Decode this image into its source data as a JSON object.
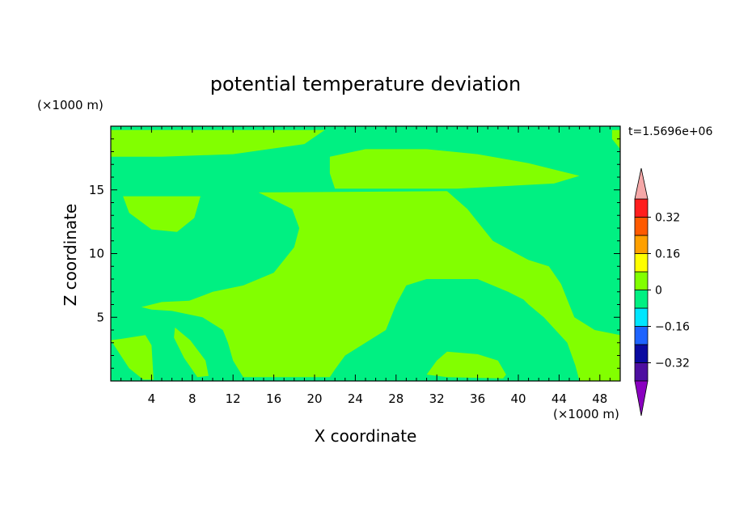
{
  "chart_data": {
    "type": "heatmap",
    "title": "potential temperature deviation",
    "xlabel": "X coordinate",
    "ylabel": "Z coordinate",
    "x_unit": "(×1000 m)",
    "y_unit": "(×1000 m)",
    "time_label": "t=1.5696e+06",
    "xlim": [
      0,
      50
    ],
    "ylim": [
      0,
      20
    ],
    "x_ticks": [
      4,
      8,
      12,
      16,
      20,
      24,
      28,
      32,
      36,
      40,
      44,
      48
    ],
    "y_ticks": [
      5,
      10,
      15
    ],
    "colorbar": {
      "levels": [
        -0.4,
        -0.32,
        -0.24,
        -0.16,
        -0.08,
        0,
        0.08,
        0.16,
        0.24,
        0.32,
        0.4
      ],
      "tick_labels": [
        "0.32",
        "0.16",
        "0",
        "−0.16",
        "−0.32"
      ],
      "tick_values": [
        0.32,
        0.16,
        0,
        -0.16,
        -0.32
      ],
      "colors": [
        "#4d0fa0",
        "#0a0aa0",
        "#1e64ff",
        "#00e6ff",
        "#00f082",
        "#82ff00",
        "#ffff00",
        "#ffa000",
        "#ff5a00",
        "#ff1e1e"
      ],
      "below_color": "#8a00c0",
      "above_color": "#f5a8a8"
    },
    "field": {
      "background_color": "#00f082",
      "positive_color": "#82ff00",
      "regions": [
        {
          "name": "top-band",
          "points": [
            [
              0,
              19.7
            ],
            [
              21,
              19.7
            ],
            [
              19,
              18.6
            ],
            [
              12,
              17.8
            ],
            [
              5,
              17.6
            ],
            [
              0,
              17.6
            ]
          ]
        },
        {
          "name": "upper-right-band",
          "points": [
            [
              21.5,
              17.6
            ],
            [
              25,
              18.2
            ],
            [
              31,
              18.2
            ],
            [
              36,
              17.8
            ],
            [
              41,
              17.1
            ],
            [
              46,
              16.1
            ],
            [
              43.5,
              15.5
            ],
            [
              34,
              15.1
            ],
            [
              22,
              15.1
            ],
            [
              21.5,
              16.3
            ]
          ]
        },
        {
          "name": "left-blob",
          "points": [
            [
              1.2,
              14.5
            ],
            [
              8.8,
              14.5
            ],
            [
              8.2,
              12.8
            ],
            [
              6.5,
              11.7
            ],
            [
              4,
              11.9
            ],
            [
              1.8,
              13.2
            ]
          ]
        },
        {
          "name": "central-region",
          "points": [
            [
              14.5,
              14.8
            ],
            [
              33,
              14.9
            ],
            [
              35,
              13.5
            ],
            [
              37.5,
              11
            ],
            [
              41,
              9.5
            ],
            [
              43,
              9
            ],
            [
              44.2,
              7.6
            ],
            [
              45.5,
              5
            ],
            [
              47.5,
              4
            ],
            [
              50,
              3.6
            ],
            [
              50,
              0
            ],
            [
              46,
              0
            ],
            [
              45.6,
              1.2
            ],
            [
              44.8,
              3
            ],
            [
              42.5,
              5
            ],
            [
              41,
              6
            ],
            [
              40.5,
              6.4
            ],
            [
              39,
              7
            ],
            [
              36,
              8
            ],
            [
              31,
              8
            ],
            [
              29,
              7.5
            ],
            [
              28,
              6
            ],
            [
              27,
              4
            ],
            [
              25,
              3
            ],
            [
              23,
              2
            ],
            [
              22,
              0.9
            ],
            [
              21.5,
              0.3
            ],
            [
              13,
              0.3
            ],
            [
              12,
              1.6
            ],
            [
              11.5,
              3
            ],
            [
              11,
              4
            ],
            [
              9,
              5
            ],
            [
              6,
              5.5
            ],
            [
              4,
              5.6
            ],
            [
              3,
              5.8
            ],
            [
              5,
              6.2
            ],
            [
              7.7,
              6.3
            ],
            [
              10,
              7
            ],
            [
              13,
              7.5
            ],
            [
              16,
              8.5
            ],
            [
              18,
              10.5
            ],
            [
              18.5,
              12
            ],
            [
              17.8,
              13.5
            ]
          ]
        },
        {
          "name": "inner-bottom-blob",
          "points": [
            [
              6.3,
              4.2
            ],
            [
              7.8,
              3.2
            ],
            [
              9.3,
              1.6
            ],
            [
              9.6,
              0.4
            ],
            [
              8.5,
              0.3
            ],
            [
              7.2,
              1.8
            ],
            [
              6.2,
              3.4
            ]
          ]
        },
        {
          "name": "bottom-left-ridge",
          "points": [
            [
              0,
              3.2
            ],
            [
              1.8,
              1
            ],
            [
              3.2,
              0.1
            ],
            [
              4.2,
              0.1
            ],
            [
              4,
              2.8
            ],
            [
              3.4,
              3.6
            ],
            [
              1,
              3.3
            ]
          ]
        },
        {
          "name": "bottom-right-ripple",
          "points": [
            [
              33,
              2.3
            ],
            [
              36,
              2.1
            ],
            [
              38,
              1.6
            ],
            [
              38.8,
              0.5
            ],
            [
              38.5,
              0.2
            ],
            [
              33,
              0.3
            ],
            [
              31,
              0.5
            ],
            [
              32,
              1.6
            ]
          ]
        },
        {
          "name": "top-right-corner",
          "points": [
            [
              49.2,
              19
            ],
            [
              50,
              18.2
            ],
            [
              50,
              19.7
            ],
            [
              49.2,
              19.7
            ]
          ]
        }
      ]
    }
  }
}
